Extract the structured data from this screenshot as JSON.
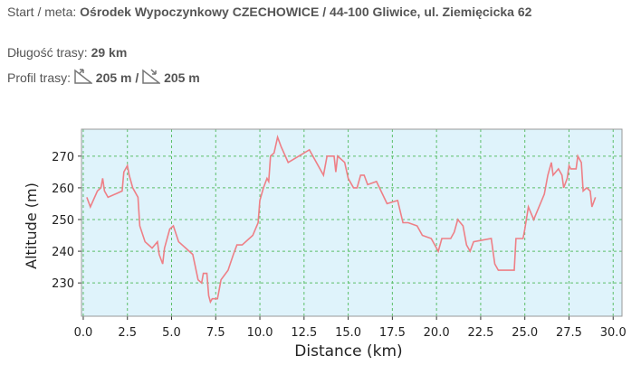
{
  "start_label": "Start / meta:",
  "start_value": "Ośrodek Wypoczynkowy CZECHOWICE / 44-100 Gliwice, ul. Ziemięcicka 62",
  "length_label": "Długość trasy:",
  "length_value": "29 km",
  "profile_label": "Profil trasy:",
  "ascent": "205 m",
  "separator": "/",
  "descent": "205 m",
  "chart_data": {
    "type": "line",
    "xlabel": "Distance (km)",
    "ylabel": "Altitude (m)",
    "x": [
      0.2,
      0.4,
      0.8,
      1.0,
      1.1,
      1.2,
      1.4,
      2.2,
      2.3,
      2.5,
      2.6,
      2.8,
      3.1,
      3.2,
      3.5,
      3.9,
      4.2,
      4.3,
      4.5,
      4.6,
      4.9,
      5.1,
      5.4,
      6.2,
      6.5,
      6.7,
      6.8,
      7.0,
      7.1,
      7.2,
      7.3,
      7.6,
      7.7,
      7.8,
      8.2,
      8.5,
      8.7,
      9.0,
      9.6,
      9.9,
      10.0,
      10.2,
      10.4,
      10.5,
      10.6,
      10.8,
      11.0,
      11.2,
      11.6,
      12.8,
      13.6,
      13.8,
      14.2,
      14.3,
      14.4,
      14.8,
      15.0,
      15.3,
      15.5,
      15.7,
      15.9,
      16.1,
      16.6,
      17.2,
      17.8,
      18.1,
      18.4,
      18.9,
      19.2,
      19.7,
      20.1,
      20.3,
      20.8,
      21.0,
      21.2,
      21.5,
      21.7,
      21.9,
      22.1,
      23.1,
      23.3,
      23.5,
      24.4,
      24.5,
      24.9,
      25.0,
      25.2,
      25.5,
      26.1,
      26.3,
      26.5,
      26.6,
      26.9,
      27.1,
      27.2,
      27.4,
      27.5,
      27.6,
      27.9,
      28.0,
      28.2,
      28.3,
      28.5,
      28.7,
      28.8,
      29.0
    ],
    "series": [
      {
        "color": "#ee7f86",
        "values": [
          257,
          254,
          259,
          260,
          263,
          259,
          257,
          259,
          265,
          267,
          264,
          260,
          257,
          248,
          243,
          241,
          243,
          239,
          236,
          241,
          247,
          248,
          243,
          239,
          231,
          230,
          233,
          233,
          226,
          224,
          225,
          225,
          228,
          231,
          234,
          239,
          242,
          242,
          245,
          249,
          256,
          260,
          263,
          262,
          270,
          271,
          276,
          273,
          268,
          272,
          264,
          270,
          270,
          265,
          270,
          268,
          263,
          260,
          260,
          264,
          264,
          261,
          262,
          255,
          256,
          249,
          249,
          248,
          245,
          244,
          240,
          244,
          244,
          246,
          250,
          248,
          242,
          240,
          243,
          244,
          236,
          234,
          234,
          244,
          244,
          247,
          254,
          250,
          258,
          264,
          268,
          264,
          266,
          264,
          260,
          263,
          267,
          266,
          266,
          270,
          268,
          259,
          260,
          259,
          254,
          257
        ]
      }
    ],
    "xlim": [
      -0.1,
      30.5
    ],
    "ylim": [
      219.5,
      278.5
    ],
    "xticks": [
      {
        "value": 0,
        "label": "0.0"
      },
      2.5,
      {
        "value": 5,
        "label": "5.0"
      },
      7.5,
      {
        "value": 10,
        "label": "10.0"
      },
      12.5,
      {
        "value": 15,
        "label": "15.0"
      },
      17.5,
      {
        "value": 20,
        "label": "20.0"
      },
      22.5,
      {
        "value": 25,
        "label": "25.0"
      },
      27.5,
      {
        "value": 30,
        "label": "30.0"
      }
    ],
    "yticks": [
      230,
      240,
      250,
      260,
      270
    ],
    "grid": true
  }
}
